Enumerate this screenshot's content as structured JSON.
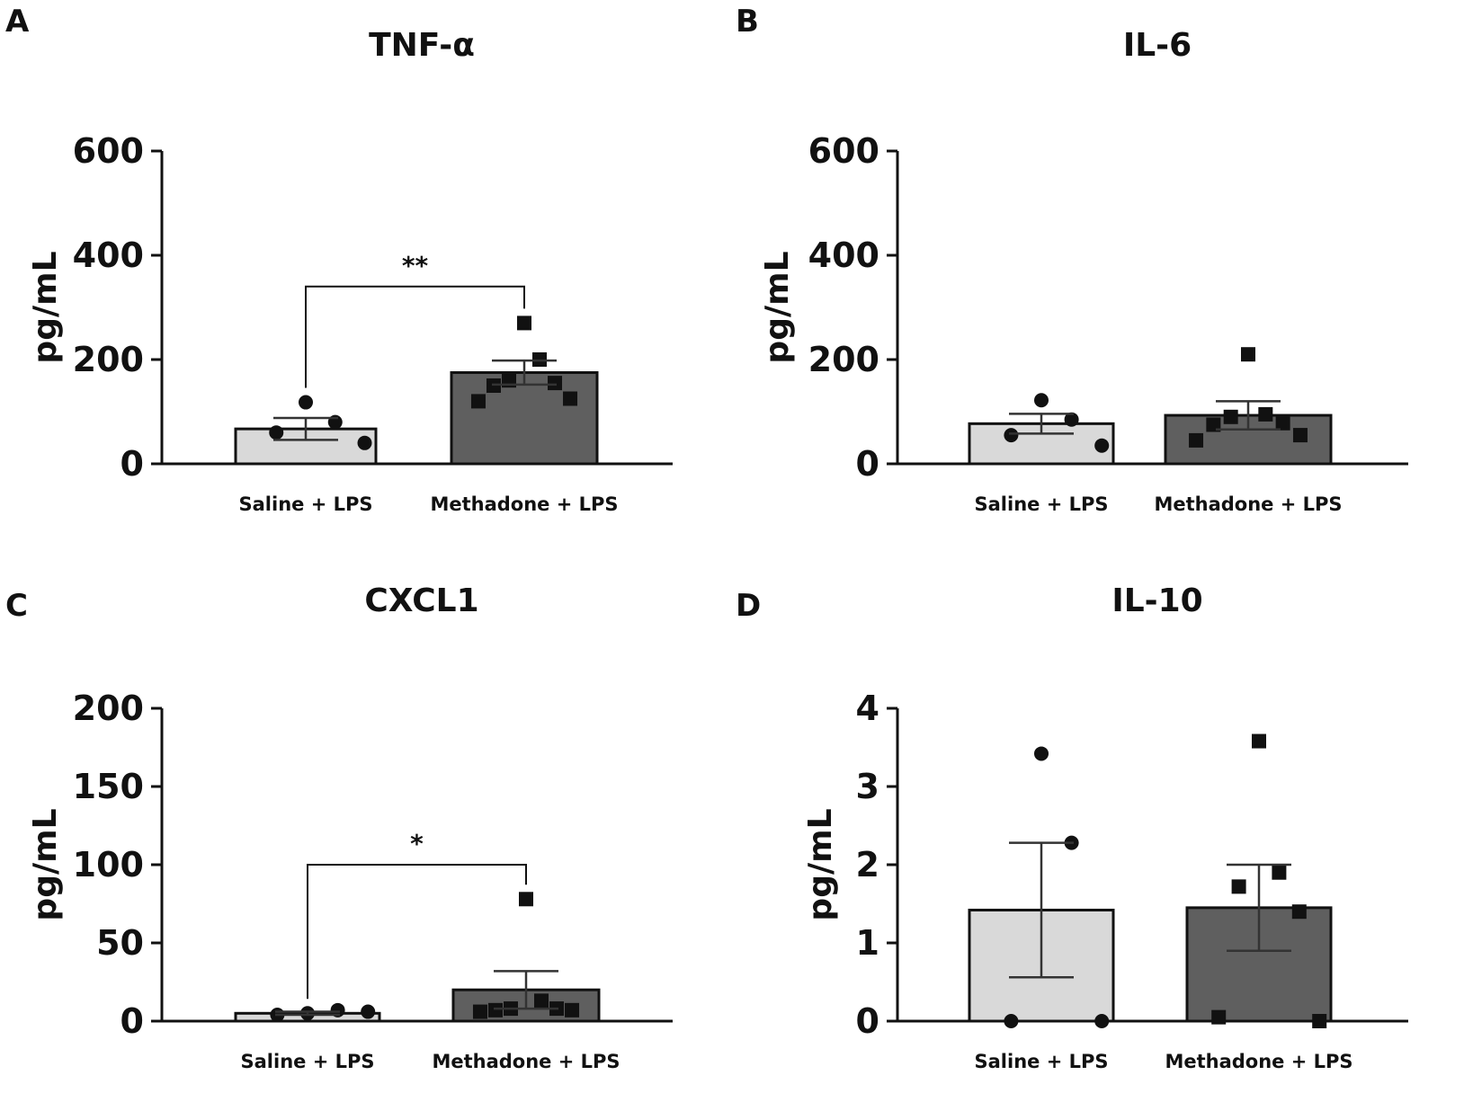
{
  "chart_data": [
    {
      "panel": "A",
      "type": "bar",
      "title": "TNF-α",
      "ylabel": "pg/mL",
      "ylim": [
        0,
        600
      ],
      "yticks": [
        "0",
        "200",
        "400",
        "600"
      ],
      "categories": [
        "Saline + LPS",
        "Methadone + LPS"
      ],
      "values": [
        67,
        175
      ],
      "sem": [
        21,
        23
      ],
      "colors": [
        "#d9d9d9",
        "#5f5f5f"
      ],
      "markers": [
        "circle",
        "square"
      ],
      "points": [
        [
          118,
          80,
          60,
          40
        ],
        [
          270,
          200,
          160,
          155,
          150,
          125,
          120
        ]
      ],
      "significance": {
        "label": "**",
        "bracket_y": 340
      }
    },
    {
      "panel": "B",
      "type": "bar",
      "title": "IL-6",
      "ylabel": "pg/mL",
      "ylim": [
        0,
        600
      ],
      "yticks": [
        "0",
        "200",
        "400",
        "600"
      ],
      "categories": [
        "Saline + LPS",
        "Methadone + LPS"
      ],
      "values": [
        77,
        93
      ],
      "sem": [
        19,
        27
      ],
      "colors": [
        "#d9d9d9",
        "#5f5f5f"
      ],
      "markers": [
        "circle",
        "square"
      ],
      "points": [
        [
          122,
          85,
          55,
          35
        ],
        [
          210,
          95,
          90,
          78,
          75,
          55,
          45
        ]
      ],
      "significance": null
    },
    {
      "panel": "C",
      "type": "bar",
      "title": "CXCL1",
      "ylabel": "pg/mL",
      "ylim": [
        0,
        200
      ],
      "yticks": [
        "0",
        "50",
        "100",
        "150",
        "200"
      ],
      "categories": [
        "Saline + LPS",
        "Methadone + LPS"
      ],
      "values": [
        5,
        20
      ],
      "sem": [
        1,
        12
      ],
      "colors": [
        "#d9d9d9",
        "#5f5f5f"
      ],
      "markers": [
        "circle",
        "square"
      ],
      "points": [
        [
          5,
          7,
          4,
          6
        ],
        [
          78,
          13,
          8,
          8,
          7,
          7,
          6
        ]
      ],
      "significance": {
        "label": "*",
        "bracket_y": 100
      }
    },
    {
      "panel": "D",
      "type": "bar",
      "title": "IL-10",
      "ylabel": "pg/mL",
      "ylim": [
        0,
        4
      ],
      "yticks": [
        "0",
        "1",
        "2",
        "3",
        "4"
      ],
      "categories": [
        "Saline + LPS",
        "Methadone + LPS"
      ],
      "values": [
        1.42,
        1.45
      ],
      "sem": [
        0.86,
        0.55
      ],
      "colors": [
        "#d9d9d9",
        "#5f5f5f"
      ],
      "markers": [
        "circle",
        "square"
      ],
      "points": [
        [
          3.42,
          2.28,
          0.0,
          0.0
        ],
        [
          3.58,
          1.9,
          1.72,
          1.4,
          0.05,
          0.0
        ]
      ],
      "significance": null
    }
  ]
}
